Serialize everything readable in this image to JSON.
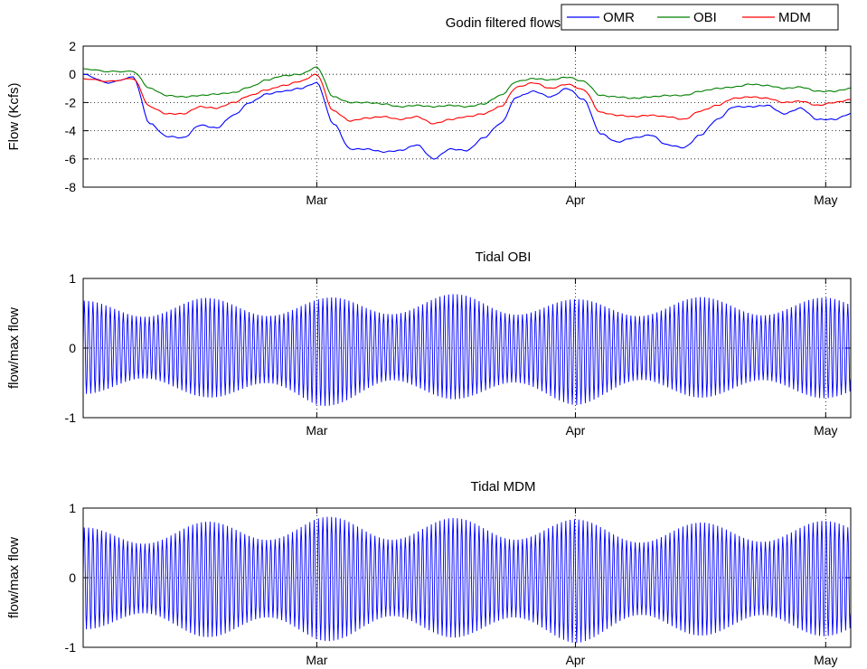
{
  "chart_data": [
    {
      "type": "line",
      "title": "Godin filtered flows",
      "xlabel": "",
      "ylabel": "Flow (Kcfs)",
      "x_range": [
        "2009-02-01",
        "2009-05-04"
      ],
      "x_ticks": [
        "Mar",
        "Apr",
        "May"
      ],
      "ylim": [
        -8,
        2
      ],
      "y_ticks": [
        "2",
        "0",
        "-2",
        "-4",
        "-6",
        "-8"
      ],
      "grid": "dotted",
      "legend": "top-right-outside",
      "legend_entries": [
        "OMR",
        "OBI",
        "MDM"
      ],
      "series": [
        {
          "name": "OMR",
          "color": "#0000ff",
          "x": [
            "2009-02-01",
            "2009-02-04",
            "2009-02-07",
            "2009-02-09",
            "2009-02-11",
            "2009-02-13",
            "2009-02-15",
            "2009-02-17",
            "2009-02-19",
            "2009-02-21",
            "2009-02-23",
            "2009-02-25",
            "2009-02-27",
            "2009-03-01",
            "2009-03-03",
            "2009-03-05",
            "2009-03-07",
            "2009-03-09",
            "2009-03-11",
            "2009-03-13",
            "2009-03-15",
            "2009-03-17",
            "2009-03-19",
            "2009-03-21",
            "2009-03-23",
            "2009-03-25",
            "2009-03-27",
            "2009-03-29",
            "2009-03-31",
            "2009-04-02",
            "2009-04-04",
            "2009-04-06",
            "2009-04-08",
            "2009-04-10",
            "2009-04-12",
            "2009-04-14",
            "2009-04-16",
            "2009-04-18",
            "2009-04-20",
            "2009-04-22",
            "2009-04-24",
            "2009-04-26",
            "2009-04-28",
            "2009-04-30",
            "2009-05-02",
            "2009-05-04"
          ],
          "values": [
            0.0,
            -0.6,
            -0.2,
            -3.5,
            -4.4,
            -4.5,
            -3.6,
            -3.8,
            -2.9,
            -2.0,
            -1.4,
            -1.2,
            -1.0,
            -0.6,
            -3.5,
            -5.3,
            -5.3,
            -5.5,
            -5.4,
            -5.0,
            -6.0,
            -5.3,
            -5.4,
            -4.5,
            -3.5,
            -1.6,
            -1.2,
            -1.6,
            -1.0,
            -1.8,
            -4.2,
            -4.8,
            -4.5,
            -4.3,
            -5.0,
            -5.2,
            -4.3,
            -3.2,
            -2.3,
            -2.3,
            -2.2,
            -2.8,
            -2.4,
            -3.2,
            -3.2,
            -2.8
          ]
        },
        {
          "name": "OBI",
          "color": "#008000",
          "x": [
            "2009-02-01",
            "2009-02-04",
            "2009-02-07",
            "2009-02-09",
            "2009-02-11",
            "2009-02-13",
            "2009-02-15",
            "2009-02-17",
            "2009-02-19",
            "2009-02-21",
            "2009-02-23",
            "2009-02-25",
            "2009-02-27",
            "2009-03-01",
            "2009-03-03",
            "2009-03-05",
            "2009-03-07",
            "2009-03-09",
            "2009-03-11",
            "2009-03-13",
            "2009-03-15",
            "2009-03-17",
            "2009-03-19",
            "2009-03-21",
            "2009-03-23",
            "2009-03-25",
            "2009-03-27",
            "2009-03-29",
            "2009-03-31",
            "2009-04-02",
            "2009-04-04",
            "2009-04-06",
            "2009-04-08",
            "2009-04-10",
            "2009-04-12",
            "2009-04-14",
            "2009-04-16",
            "2009-04-18",
            "2009-04-20",
            "2009-04-22",
            "2009-04-24",
            "2009-04-26",
            "2009-04-28",
            "2009-04-30",
            "2009-05-02",
            "2009-05-04"
          ],
          "values": [
            0.4,
            0.2,
            0.2,
            -1.0,
            -1.5,
            -1.6,
            -1.5,
            -1.4,
            -1.3,
            -0.9,
            -0.4,
            -0.1,
            0.0,
            0.5,
            -1.6,
            -2.0,
            -2.0,
            -2.1,
            -2.3,
            -2.2,
            -2.3,
            -2.2,
            -2.3,
            -2.1,
            -1.5,
            -0.5,
            -0.3,
            -0.4,
            -0.2,
            -0.5,
            -1.5,
            -1.6,
            -1.7,
            -1.6,
            -1.5,
            -1.5,
            -1.2,
            -1.0,
            -0.9,
            -0.7,
            -0.8,
            -1.0,
            -0.9,
            -1.2,
            -1.2,
            -1.0
          ]
        },
        {
          "name": "MDM",
          "color": "#ff0000",
          "x": [
            "2009-02-01",
            "2009-02-04",
            "2009-02-07",
            "2009-02-09",
            "2009-02-11",
            "2009-02-13",
            "2009-02-15",
            "2009-02-17",
            "2009-02-19",
            "2009-02-21",
            "2009-02-23",
            "2009-02-25",
            "2009-02-27",
            "2009-03-01",
            "2009-03-03",
            "2009-03-05",
            "2009-03-07",
            "2009-03-09",
            "2009-03-11",
            "2009-03-13",
            "2009-03-15",
            "2009-03-17",
            "2009-03-19",
            "2009-03-21",
            "2009-03-23",
            "2009-03-25",
            "2009-03-27",
            "2009-03-29",
            "2009-03-31",
            "2009-04-02",
            "2009-04-04",
            "2009-04-06",
            "2009-04-08",
            "2009-04-10",
            "2009-04-12",
            "2009-04-14",
            "2009-04-16",
            "2009-04-18",
            "2009-04-20",
            "2009-04-22",
            "2009-04-24",
            "2009-04-26",
            "2009-04-28",
            "2009-04-30",
            "2009-05-02",
            "2009-05-04"
          ],
          "values": [
            -0.3,
            -0.5,
            -0.3,
            -2.3,
            -2.8,
            -2.8,
            -2.3,
            -2.4,
            -2.0,
            -1.5,
            -1.1,
            -0.8,
            -0.5,
            0.0,
            -2.6,
            -3.3,
            -3.1,
            -3.0,
            -3.2,
            -3.0,
            -3.5,
            -3.2,
            -3.0,
            -2.8,
            -2.3,
            -0.9,
            -0.6,
            -1.0,
            -0.7,
            -1.1,
            -2.7,
            -2.9,
            -3.0,
            -2.9,
            -3.0,
            -3.2,
            -2.6,
            -2.2,
            -1.7,
            -1.6,
            -1.7,
            -2.0,
            -1.9,
            -2.2,
            -2.0,
            -1.8
          ]
        }
      ]
    },
    {
      "type": "line",
      "title": "Tidal OBI",
      "xlabel": "",
      "ylabel": "flow/max flow",
      "x_range": [
        "2009-02-01",
        "2009-05-04"
      ],
      "x_ticks": [
        "Mar",
        "Apr",
        "May"
      ],
      "ylim": [
        -1,
        1
      ],
      "y_ticks": [
        "1",
        "0",
        "-1"
      ],
      "grid": "dotted",
      "color": "#0000ff",
      "oscillation_period_days": 0.52,
      "amplitude_envelope": {
        "x": [
          "2009-02-01",
          "2009-02-15",
          "2009-03-01",
          "2009-03-10",
          "2009-03-20",
          "2009-04-01",
          "2009-04-10",
          "2009-04-20",
          "2009-05-04"
        ],
        "upper": [
          0.68,
          0.72,
          0.72,
          0.76,
          0.78,
          0.7,
          0.72,
          0.74,
          0.72
        ],
        "lower": [
          -0.66,
          -0.7,
          -0.85,
          -0.72,
          -0.74,
          -0.82,
          -0.7,
          -0.72,
          -0.72
        ]
      }
    },
    {
      "type": "line",
      "title": "Tidal MDM",
      "xlabel": "",
      "ylabel": "flow/max flow",
      "x_range": [
        "2009-02-01",
        "2009-05-04"
      ],
      "x_ticks": [
        "Mar",
        "Apr",
        "May"
      ],
      "ylim": [
        -1,
        1
      ],
      "y_ticks": [
        "1",
        "0",
        "-1"
      ],
      "grid": "dotted",
      "color": "#0000ff",
      "oscillation_period_days": 0.52,
      "amplitude_envelope": {
        "x": [
          "2009-02-01",
          "2009-02-15",
          "2009-03-01",
          "2009-03-10",
          "2009-03-20",
          "2009-04-01",
          "2009-04-10",
          "2009-04-20",
          "2009-05-04"
        ],
        "upper": [
          0.72,
          0.8,
          0.88,
          0.85,
          0.86,
          0.84,
          0.78,
          0.8,
          0.82
        ],
        "lower": [
          -0.74,
          -0.85,
          -0.92,
          -0.86,
          -0.86,
          -0.94,
          -0.82,
          -0.84,
          -0.84
        ]
      }
    }
  ]
}
